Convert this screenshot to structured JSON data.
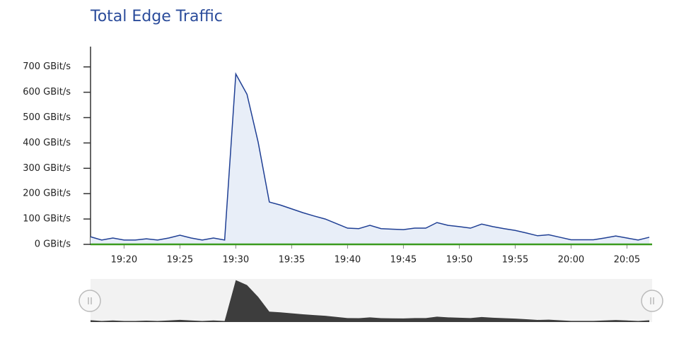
{
  "chart_data": {
    "type": "area",
    "title": "Total Edge Traffic",
    "x": [
      "19:17",
      "19:18",
      "19:19",
      "19:20",
      "19:21",
      "19:22",
      "19:23",
      "19:24",
      "19:25",
      "19:26",
      "19:27",
      "19:28",
      "19:29",
      "19:30",
      "19:31",
      "19:32",
      "19:33",
      "19:34",
      "19:35",
      "19:36",
      "19:37",
      "19:38",
      "19:39",
      "19:40",
      "19:41",
      "19:42",
      "19:43",
      "19:44",
      "19:45",
      "19:46",
      "19:47",
      "19:48",
      "19:49",
      "19:50",
      "19:51",
      "19:52",
      "19:53",
      "19:54",
      "19:55",
      "19:56",
      "19:57",
      "19:58",
      "19:59",
      "20:00",
      "20:01",
      "20:02",
      "20:03",
      "20:04",
      "20:05",
      "20:06",
      "20:07"
    ],
    "values": [
      30,
      17,
      25,
      17,
      17,
      22,
      17,
      25,
      36,
      25,
      17,
      25,
      17,
      672,
      592,
      403,
      167,
      155,
      140,
      125,
      112,
      100,
      82,
      64,
      62,
      75,
      62,
      60,
      58,
      64,
      64,
      86,
      75,
      70,
      64,
      80,
      70,
      62,
      55,
      45,
      34,
      38,
      28,
      18,
      18,
      18,
      25,
      33,
      25,
      17,
      28
    ],
    "color": "#1f3f94",
    "fill": "#e8eef8",
    "navigator_color": "#3d3d3d",
    "xlim": [
      "19:17",
      "20:07"
    ],
    "xticks": [
      "19:20",
      "19:25",
      "19:30",
      "19:35",
      "19:40",
      "19:45",
      "19:50",
      "19:55",
      "20:00",
      "20:05"
    ],
    "ylim": [
      0,
      780
    ],
    "yticks": [
      {
        "value": 0,
        "label": "0 GBit/s"
      },
      {
        "value": 100,
        "label": "100 GBit/s"
      },
      {
        "value": 200,
        "label": "200 GBit/s"
      },
      {
        "value": 300,
        "label": "300 GBit/s"
      },
      {
        "value": 400,
        "label": "400 GBit/s"
      },
      {
        "value": 500,
        "label": "500 GBit/s"
      },
      {
        "value": 600,
        "label": "600 GBit/s"
      },
      {
        "value": 700,
        "label": "700 GBit/s"
      }
    ]
  }
}
